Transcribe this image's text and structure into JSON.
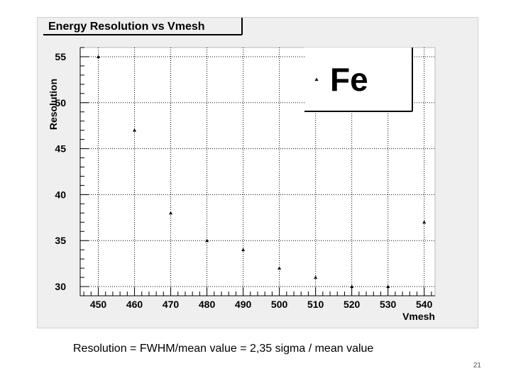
{
  "chart_data": {
    "type": "scatter",
    "title": "Energy Resolution vs Vmesh",
    "xlabel": "Vmesh",
    "ylabel": "Resolution",
    "xlim": [
      445,
      543
    ],
    "ylim": [
      29,
      56
    ],
    "x_ticks": [
      450,
      460,
      470,
      480,
      490,
      500,
      510,
      520,
      530,
      540
    ],
    "y_ticks": [
      30,
      35,
      40,
      45,
      50,
      55
    ],
    "grid": true,
    "marker": "triangle",
    "legend_position": "top-right",
    "series": [
      {
        "name": "Fe",
        "x": [
          450,
          460,
          470,
          480,
          490,
          500,
          510,
          520,
          530,
          540
        ],
        "y": [
          55,
          47,
          38,
          35,
          34,
          32,
          31,
          30,
          30,
          37
        ]
      }
    ]
  },
  "caption": "Resolution = FWHM/mean value = 2,35 sigma / mean value",
  "slide_number": "21",
  "colors": {
    "canvas_background": "#efefef",
    "plot_background": "#ffffff",
    "marker": "#000000",
    "grid": "#000000"
  }
}
